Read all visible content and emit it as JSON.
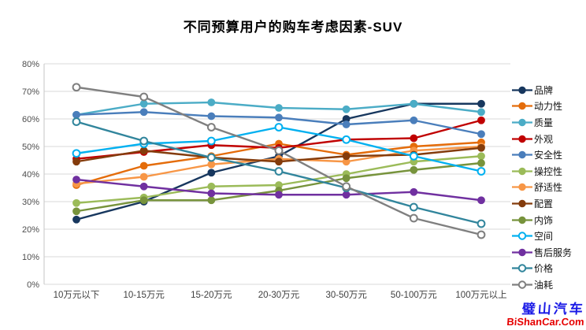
{
  "title": "不同预算用户的购车考虑因素-SUV",
  "watermark": {
    "brand": "璧山汽车",
    "site": "BiShanCar.Com",
    "brand_color": "#1a1ae6",
    "site_color": "#e60000"
  },
  "axis_colors": {
    "grid": "#d9d9d9",
    "axis": "#c6c6c6",
    "tick_text": "#4d4d4d"
  },
  "chart_data": {
    "type": "line",
    "title": "不同预算用户的购车考虑因素-SUV",
    "categories": [
      "10万元以下",
      "10-15万元",
      "15-20万元",
      "20-30万元",
      "30-50万元",
      "50-100万元",
      "100万元以上"
    ],
    "ylabel": "",
    "xlabel": "",
    "ylim": [
      0,
      80
    ],
    "ytick_step": 10,
    "ytick_suffix": "%",
    "grid": "horizontal",
    "legend_position": "right",
    "series": [
      {
        "name": "品牌",
        "color": "#17375E",
        "marker": "filled",
        "values": [
          23.5,
          30,
          40.5,
          46.5,
          60,
          65.5,
          65.5
        ]
      },
      {
        "name": "动力性",
        "color": "#E46C0A",
        "marker": "filled",
        "values": [
          36,
          43,
          46.5,
          51,
          47,
          50,
          51.5
        ]
      },
      {
        "name": "质量",
        "color": "#4BACC6",
        "marker": "filled",
        "values": [
          61.5,
          65.5,
          66,
          64,
          63.5,
          65.5,
          62.5
        ]
      },
      {
        "name": "外观",
        "color": "#C00000",
        "marker": "filled",
        "values": [
          45.5,
          48,
          50.5,
          49.5,
          52.5,
          53,
          59.5
        ]
      },
      {
        "name": "安全性",
        "color": "#4A7EBB",
        "marker": "filled",
        "values": [
          61.5,
          62.5,
          61,
          60.5,
          58,
          59.5,
          54.5
        ]
      },
      {
        "name": "操控性",
        "color": "#9BBB59",
        "marker": "filled",
        "values": [
          29.5,
          31.5,
          35.5,
          36,
          40,
          44.5,
          46.5
        ]
      },
      {
        "name": "舒适性",
        "color": "#F79646",
        "marker": "filled",
        "values": [
          36.5,
          39,
          43.5,
          45.5,
          44.5,
          48.5,
          50
        ]
      },
      {
        "name": "配置",
        "color": "#843C0C",
        "marker": "filled",
        "values": [
          44.5,
          48.5,
          46,
          44.5,
          46.5,
          47,
          49.5
        ]
      },
      {
        "name": "内饰",
        "color": "#77933C",
        "marker": "filled",
        "values": [
          26.5,
          30.5,
          30.5,
          34,
          38.5,
          41.5,
          44
        ]
      },
      {
        "name": "空间",
        "color": "#00B0F0",
        "marker": "open",
        "values": [
          47.5,
          51,
          52,
          57,
          52.5,
          46.5,
          41
        ]
      },
      {
        "name": "售后服务",
        "color": "#7030A0",
        "marker": "filled",
        "values": [
          38,
          35.5,
          33,
          32.5,
          32.5,
          33.5,
          30.5
        ]
      },
      {
        "name": "价格",
        "color": "#31859C",
        "marker": "open",
        "values": [
          59,
          52,
          46,
          41,
          35,
          28,
          22
        ]
      },
      {
        "name": "油耗",
        "color": "#7F7F7F",
        "marker": "open",
        "values": [
          71.5,
          68,
          57,
          48.5,
          35.5,
          24,
          18
        ]
      }
    ]
  }
}
